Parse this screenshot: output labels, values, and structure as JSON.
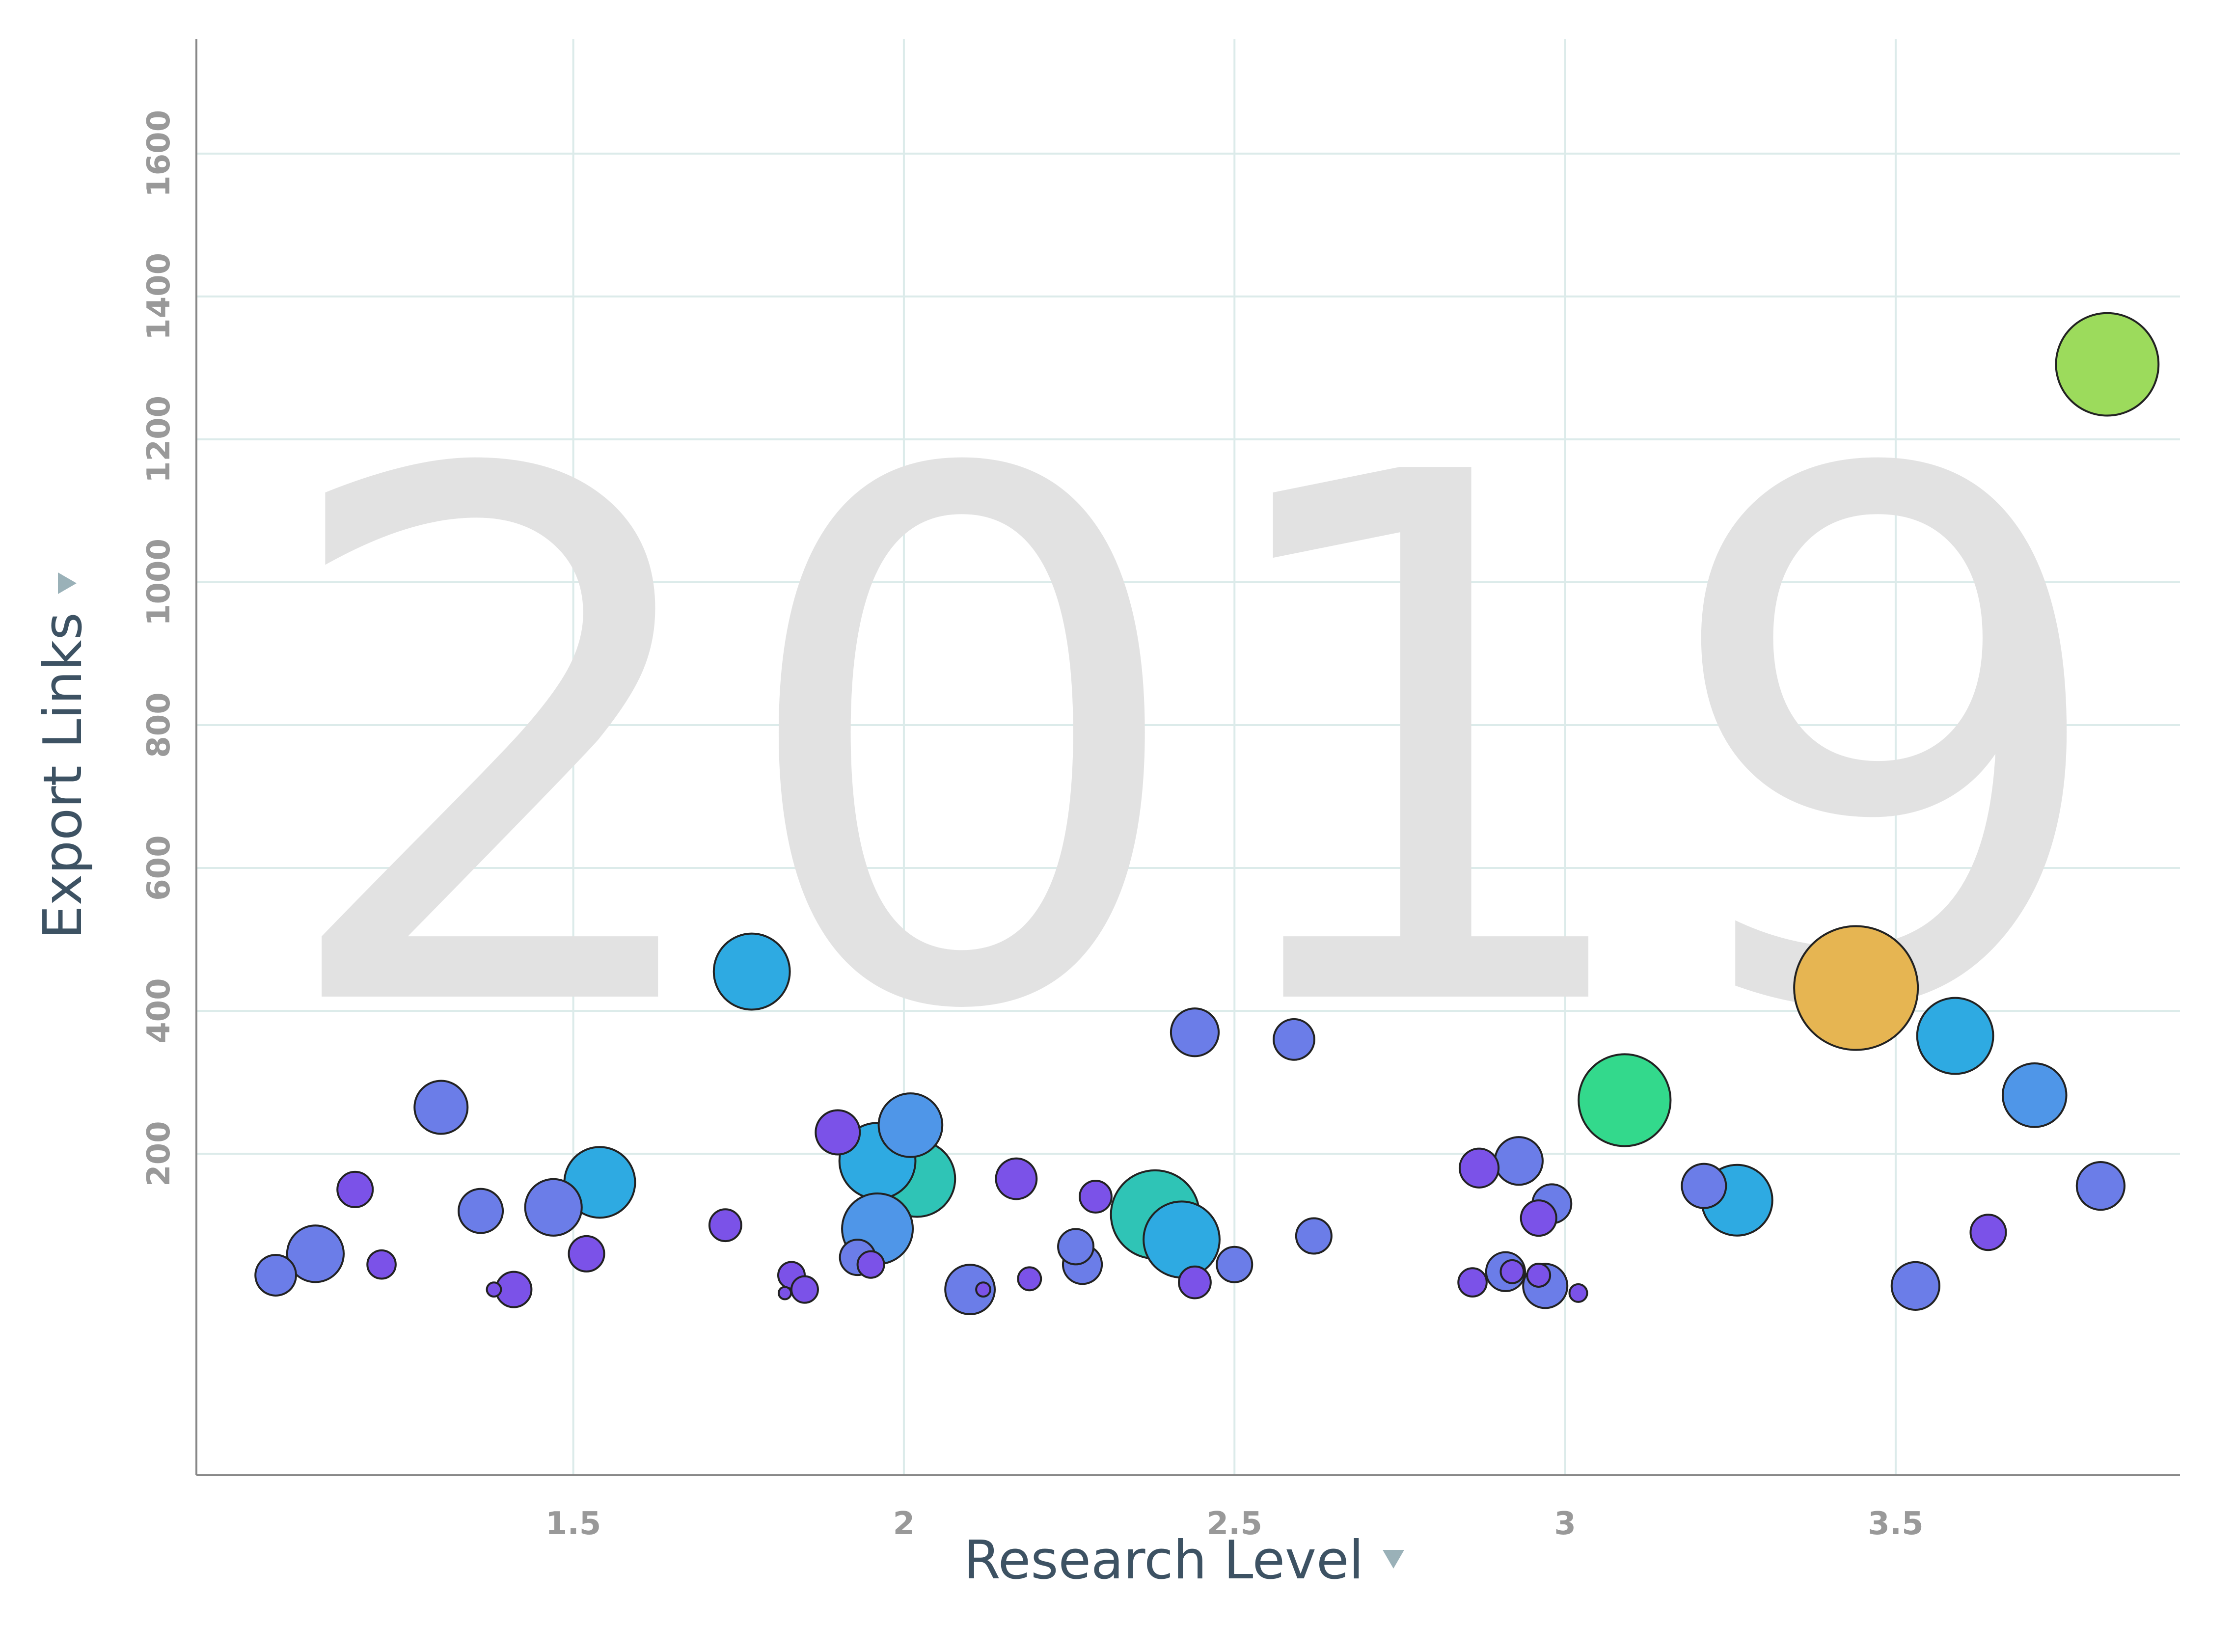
{
  "chart_data": {
    "type": "scatter",
    "year_label": "2019",
    "xlabel": "Research Level",
    "ylabel": "Export Links",
    "xlim": [
      0.93,
      3.93
    ],
    "ylim": [
      -250,
      1760
    ],
    "x_ticks": [
      1.5,
      2,
      2.5,
      3,
      3.5
    ],
    "y_ticks": [
      200,
      400,
      600,
      800,
      1000,
      1200,
      1400,
      1600
    ],
    "x_tick_labels": [
      "1.5",
      "2",
      "2.5",
      "3",
      "3.5"
    ],
    "y_tick_labels": [
      "200",
      "400",
      "600",
      "800",
      "1000",
      "1200",
      "1400",
      "1600"
    ],
    "grid": true,
    "colors": {
      "violet": "#7b52e8",
      "indigo": "#6b7de8",
      "blue": "#4f96e8",
      "cyan": "#2eaae2",
      "teal": "#2fc4b6",
      "green": "#33d98c",
      "lime": "#9cdb5c",
      "orange": "#e6b552"
    },
    "points": [
      {
        "x": 3.82,
        "y": 1305,
        "size": 5.8,
        "color": "lime"
      },
      {
        "x": 3.44,
        "y": 432,
        "size": 7.0,
        "color": "orange"
      },
      {
        "x": 3.09,
        "y": 275,
        "size": 5.2,
        "color": "green"
      },
      {
        "x": 1.77,
        "y": 455,
        "size": 4.3,
        "color": "cyan"
      },
      {
        "x": 3.59,
        "y": 365,
        "size": 4.3,
        "color": "cyan"
      },
      {
        "x": 3.71,
        "y": 282,
        "size": 3.6,
        "color": "blue"
      },
      {
        "x": 3.81,
        "y": 155,
        "size": 2.7,
        "color": "indigo"
      },
      {
        "x": 3.64,
        "y": 90,
        "size": 2.0,
        "color": "violet"
      },
      {
        "x": 3.53,
        "y": 15,
        "size": 2.7,
        "color": "indigo"
      },
      {
        "x": 3.26,
        "y": 135,
        "size": 4.0,
        "color": "cyan"
      },
      {
        "x": 3.21,
        "y": 155,
        "size": 2.5,
        "color": "indigo"
      },
      {
        "x": 2.98,
        "y": 130,
        "size": 2.2,
        "color": "indigo"
      },
      {
        "x": 2.96,
        "y": 110,
        "size": 2.0,
        "color": "violet"
      },
      {
        "x": 2.93,
        "y": 190,
        "size": 2.7,
        "color": "indigo"
      },
      {
        "x": 2.87,
        "y": 180,
        "size": 2.2,
        "color": "violet"
      },
      {
        "x": 2.91,
        "y": 35,
        "size": 2.2,
        "color": "indigo"
      },
      {
        "x": 2.97,
        "y": 15,
        "size": 2.5,
        "color": "indigo"
      },
      {
        "x": 2.92,
        "y": 35,
        "size": 1.3,
        "color": "violet"
      },
      {
        "x": 2.96,
        "y": 30,
        "size": 1.3,
        "color": "violet"
      },
      {
        "x": 2.86,
        "y": 20,
        "size": 1.6,
        "color": "violet"
      },
      {
        "x": 3.02,
        "y": 5,
        "size": 1.0,
        "color": "violet"
      },
      {
        "x": 2.44,
        "y": 370,
        "size": 2.7,
        "color": "indigo"
      },
      {
        "x": 2.59,
        "y": 360,
        "size": 2.3,
        "color": "indigo"
      },
      {
        "x": 2.38,
        "y": 115,
        "size": 5.0,
        "color": "teal"
      },
      {
        "x": 2.42,
        "y": 80,
        "size": 4.3,
        "color": "cyan"
      },
      {
        "x": 2.5,
        "y": 45,
        "size": 2.0,
        "color": "indigo"
      },
      {
        "x": 2.44,
        "y": 20,
        "size": 1.8,
        "color": "violet"
      },
      {
        "x": 2.62,
        "y": 85,
        "size": 2.0,
        "color": "indigo"
      },
      {
        "x": 2.29,
        "y": 140,
        "size": 1.8,
        "color": "violet"
      },
      {
        "x": 2.26,
        "y": 70,
        "size": 2.0,
        "color": "indigo"
      },
      {
        "x": 2.27,
        "y": 45,
        "size": 2.2,
        "color": "indigo"
      },
      {
        "x": 2.17,
        "y": 165,
        "size": 2.3,
        "color": "violet"
      },
      {
        "x": 2.19,
        "y": 25,
        "size": 1.3,
        "color": "violet"
      },
      {
        "x": 2.1,
        "y": 10,
        "size": 2.8,
        "color": "indigo"
      },
      {
        "x": 2.12,
        "y": 10,
        "size": 0.8,
        "color": "violet"
      },
      {
        "x": 2.02,
        "y": 165,
        "size": 4.3,
        "color": "teal"
      },
      {
        "x": 1.96,
        "y": 190,
        "size": 4.3,
        "color": "cyan"
      },
      {
        "x": 2.01,
        "y": 240,
        "size": 3.6,
        "color": "blue"
      },
      {
        "x": 1.9,
        "y": 230,
        "size": 2.5,
        "color": "violet"
      },
      {
        "x": 1.96,
        "y": 95,
        "size": 4.0,
        "color": "blue"
      },
      {
        "x": 1.93,
        "y": 55,
        "size": 2.0,
        "color": "indigo"
      },
      {
        "x": 1.95,
        "y": 45,
        "size": 1.5,
        "color": "violet"
      },
      {
        "x": 1.83,
        "y": 30,
        "size": 1.5,
        "color": "violet"
      },
      {
        "x": 1.85,
        "y": 10,
        "size": 1.5,
        "color": "violet"
      },
      {
        "x": 1.82,
        "y": 5,
        "size": 0.7,
        "color": "violet"
      },
      {
        "x": 1.73,
        "y": 100,
        "size": 1.8,
        "color": "violet"
      },
      {
        "x": 1.54,
        "y": 160,
        "size": 4.0,
        "color": "cyan"
      },
      {
        "x": 1.47,
        "y": 125,
        "size": 3.2,
        "color": "indigo"
      },
      {
        "x": 1.52,
        "y": 60,
        "size": 2.0,
        "color": "violet"
      },
      {
        "x": 1.41,
        "y": 10,
        "size": 2.0,
        "color": "violet"
      },
      {
        "x": 1.38,
        "y": 10,
        "size": 0.8,
        "color": "violet"
      },
      {
        "x": 1.36,
        "y": 120,
        "size": 2.5,
        "color": "indigo"
      },
      {
        "x": 1.3,
        "y": 265,
        "size": 3.0,
        "color": "indigo"
      },
      {
        "x": 1.17,
        "y": 150,
        "size": 2.0,
        "color": "violet"
      },
      {
        "x": 1.21,
        "y": 45,
        "size": 1.6,
        "color": "violet"
      },
      {
        "x": 1.11,
        "y": 60,
        "size": 3.2,
        "color": "indigo"
      },
      {
        "x": 1.05,
        "y": 30,
        "size": 2.3,
        "color": "indigo"
      }
    ]
  }
}
